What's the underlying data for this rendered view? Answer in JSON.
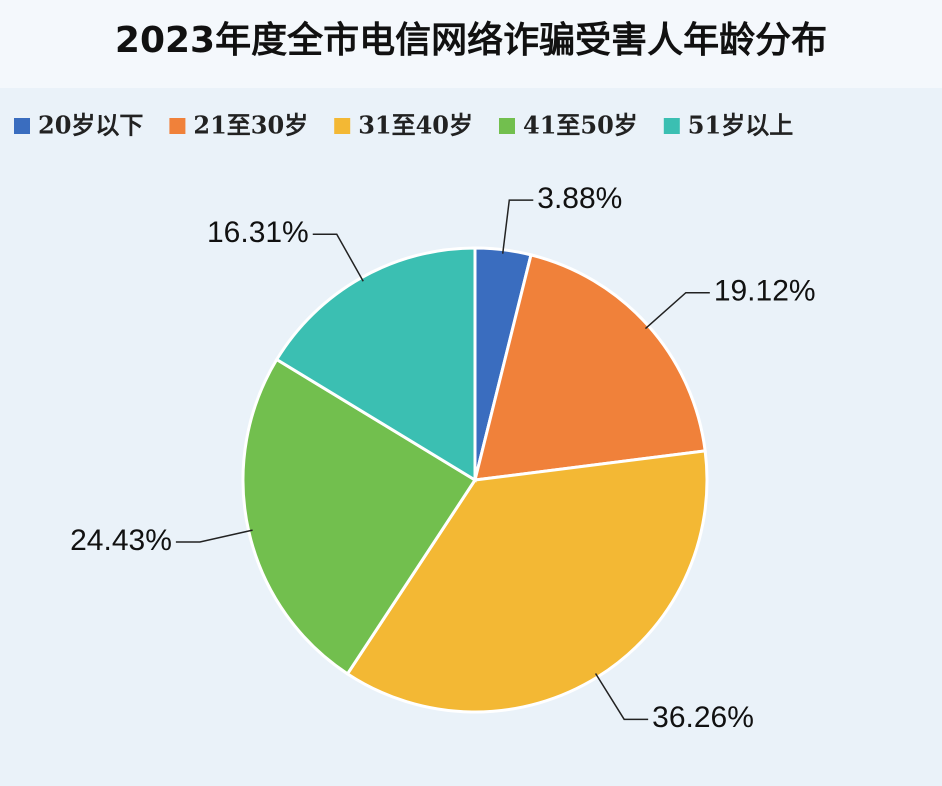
{
  "chart_data": {
    "type": "pie",
    "title": "2023年度全市电信网络诈骗受害人年龄分布",
    "categories": [
      "20岁以下",
      "21至30岁",
      "31至40岁",
      "41至50岁",
      "51岁以上"
    ],
    "values": [
      3.88,
      19.12,
      36.26,
      24.43,
      16.31
    ],
    "value_labels": [
      "3.88%",
      "19.12%",
      "36.26%",
      "24.43%",
      "16.31%"
    ],
    "colors": [
      "#3a6dbf",
      "#f0813a",
      "#f3b834",
      "#72bf4e",
      "#3bbfb2"
    ]
  }
}
